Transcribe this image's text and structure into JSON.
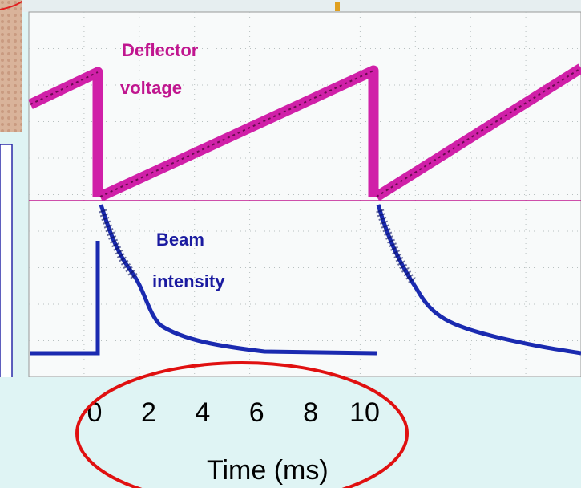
{
  "annotations": {
    "deflector": [
      "Deflector",
      "voltage"
    ],
    "beam": [
      "Beam",
      "intensity"
    ]
  },
  "axis": {
    "ticks": [
      0,
      2,
      4,
      6,
      8,
      10
    ],
    "label": "Time (ms)"
  }
}
